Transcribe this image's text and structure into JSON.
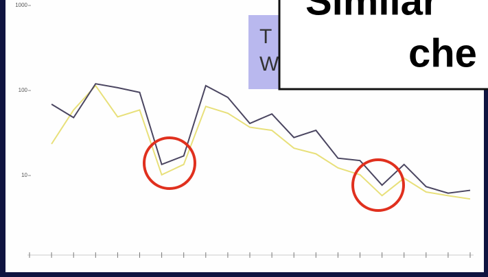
{
  "chart_data": {
    "type": "line",
    "categories": [
      null,
      null,
      null,
      null,
      null,
      null,
      null,
      null,
      null,
      null,
      null,
      null,
      null,
      null,
      null,
      null,
      null,
      null,
      null,
      null,
      null
    ],
    "series": [
      {
        "color": "#4a4560",
        "values": [
          null,
          69,
          48,
          120,
          108,
          95,
          13.5,
          17,
          114,
          83,
          41,
          53,
          28,
          34,
          16,
          15,
          7.7,
          13.5,
          7.4,
          6.2,
          6.7
        ]
      },
      {
        "color": "#e8e07a",
        "values": [
          null,
          23.5,
          59,
          114,
          49,
          59,
          10.2,
          13.5,
          65,
          54,
          37,
          34,
          21,
          18,
          12.3,
          10.2,
          5.8,
          9.3,
          6.4,
          5.8,
          5.3
        ]
      }
    ],
    "log_y": true,
    "ylim": [
      1,
      1000
    ],
    "yticks": [
      10,
      100,
      1000
    ]
  },
  "overlay": {
    "title": "Similar",
    "subtitle": "che",
    "note": [
      "T",
      "W"
    ]
  }
}
